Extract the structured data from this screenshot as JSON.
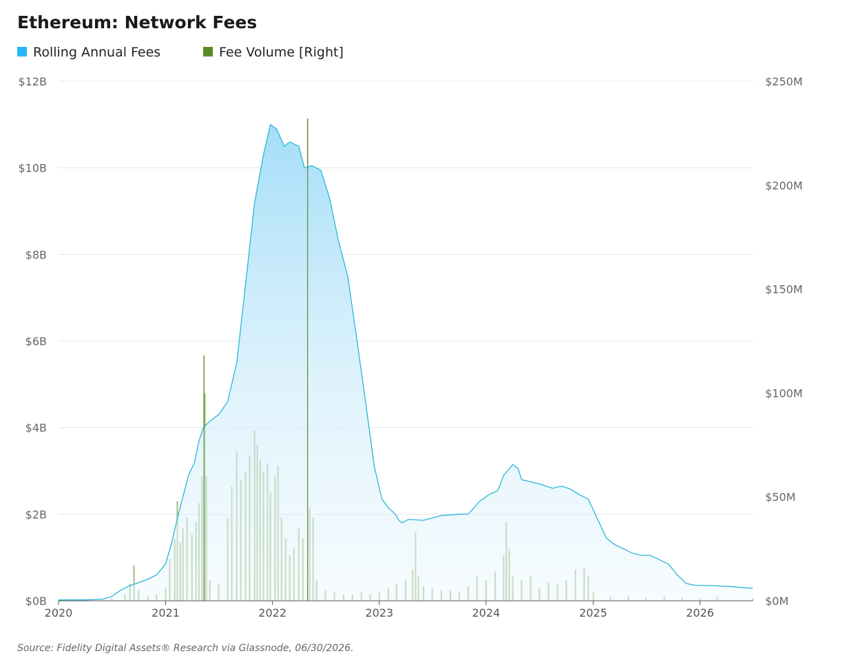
{
  "chart_data": {
    "type": "area",
    "title": "Ethereum: Network Fees",
    "legend": {
      "placement": "top-left",
      "entries": [
        {
          "name": "Rolling Annual Fees",
          "color": "#29b6f6"
        },
        {
          "name": "Fee Volume [Right]",
          "color": "#5b8c23"
        }
      ]
    },
    "x_axis": {
      "type": "date",
      "range": [
        "2020-01-01",
        "2026-06-30"
      ],
      "ticks": [
        "2020",
        "2021",
        "2022",
        "2023",
        "2024",
        "2025",
        "2026"
      ]
    },
    "y_axis_left": {
      "range": [
        0,
        12
      ],
      "unit": "billion USD",
      "ticks": [
        0,
        2,
        4,
        6,
        8,
        10,
        12
      ],
      "tick_labels": [
        "$0B",
        "$2B",
        "$4B",
        "$6B",
        "$8B",
        "$10B",
        "$12B"
      ]
    },
    "y_axis_right": {
      "range": [
        0,
        250
      ],
      "unit": "million USD",
      "ticks": [
        0,
        50,
        100,
        150,
        200,
        250
      ],
      "tick_labels": [
        "$0M",
        "$50M",
        "$100M",
        "$150M",
        "$200M",
        "$250M"
      ]
    },
    "grid": "horizontal",
    "series": [
      {
        "name": "Rolling Annual Fees",
        "axis": "left",
        "style": "area",
        "color": "#29b6f6",
        "points": [
          [
            "2020-01-01",
            0.02
          ],
          [
            "2020-04-01",
            0.02
          ],
          [
            "2020-06-01",
            0.04
          ],
          [
            "2020-07-01",
            0.1
          ],
          [
            "2020-08-01",
            0.25
          ],
          [
            "2020-09-01",
            0.35
          ],
          [
            "2020-10-01",
            0.42
          ],
          [
            "2020-11-01",
            0.5
          ],
          [
            "2020-12-01",
            0.6
          ],
          [
            "2021-01-01",
            0.85
          ],
          [
            "2021-01-20",
            1.3
          ],
          [
            "2021-02-10",
            1.9
          ],
          [
            "2021-03-01",
            2.4
          ],
          [
            "2021-03-20",
            2.9
          ],
          [
            "2021-04-10",
            3.2
          ],
          [
            "2021-04-25",
            3.7
          ],
          [
            "2021-05-10",
            4.0
          ],
          [
            "2021-06-01",
            4.15
          ],
          [
            "2021-07-01",
            4.3
          ],
          [
            "2021-08-01",
            4.6
          ],
          [
            "2021-09-01",
            5.5
          ],
          [
            "2021-10-01",
            7.3
          ],
          [
            "2021-11-01",
            9.2
          ],
          [
            "2021-12-01",
            10.3
          ],
          [
            "2021-12-25",
            11.0
          ],
          [
            "2022-01-15",
            10.9
          ],
          [
            "2022-02-10",
            10.5
          ],
          [
            "2022-03-01",
            10.6
          ],
          [
            "2022-04-01",
            10.5
          ],
          [
            "2022-04-20",
            10.0
          ],
          [
            "2022-05-15",
            10.05
          ],
          [
            "2022-06-15",
            9.95
          ],
          [
            "2022-07-15",
            9.3
          ],
          [
            "2022-08-15",
            8.3
          ],
          [
            "2022-09-15",
            7.5
          ],
          [
            "2022-10-15",
            6.1
          ],
          [
            "2022-11-15",
            4.6
          ],
          [
            "2022-12-15",
            3.1
          ],
          [
            "2023-01-10",
            2.35
          ],
          [
            "2023-02-01",
            2.15
          ],
          [
            "2023-02-25",
            2.0
          ],
          [
            "2023-03-10",
            1.85
          ],
          [
            "2023-03-20",
            1.8
          ],
          [
            "2023-04-10",
            1.88
          ],
          [
            "2023-06-01",
            1.86
          ],
          [
            "2023-08-01",
            1.97
          ],
          [
            "2023-10-01",
            2.0
          ],
          [
            "2023-11-01",
            2.0
          ],
          [
            "2023-12-10",
            2.3
          ],
          [
            "2024-01-10",
            2.45
          ],
          [
            "2024-02-10",
            2.55
          ],
          [
            "2024-03-01",
            2.9
          ],
          [
            "2024-04-01",
            3.15
          ],
          [
            "2024-04-20",
            3.05
          ],
          [
            "2024-05-01",
            2.8
          ],
          [
            "2024-06-01",
            2.75
          ],
          [
            "2024-07-01",
            2.7
          ],
          [
            "2024-08-15",
            2.6
          ],
          [
            "2024-09-15",
            2.65
          ],
          [
            "2024-10-15",
            2.58
          ],
          [
            "2024-11-15",
            2.45
          ],
          [
            "2024-12-15",
            2.35
          ],
          [
            "2025-01-15",
            1.9
          ],
          [
            "2025-02-15",
            1.45
          ],
          [
            "2025-03-15",
            1.3
          ],
          [
            "2025-04-15",
            1.2
          ],
          [
            "2025-05-15",
            1.1
          ],
          [
            "2025-06-15",
            1.05
          ],
          [
            "2025-07-15",
            1.05
          ],
          [
            "2025-08-15",
            0.95
          ],
          [
            "2025-09-15",
            0.85
          ],
          [
            "2025-10-15",
            0.6
          ],
          [
            "2025-11-15",
            0.4
          ],
          [
            "2025-12-15",
            0.36
          ],
          [
            "2026-02-15",
            0.35
          ],
          [
            "2026-04-15",
            0.33
          ],
          [
            "2026-06-30",
            0.29
          ]
        ]
      },
      {
        "name": "Fee Volume [Right]",
        "axis": "right",
        "style": "bar",
        "color": "#5b8c23",
        "points": [
          [
            "2020-01-01",
            0.3
          ],
          [
            "2020-04-01",
            0.5
          ],
          [
            "2020-07-01",
            1.5
          ],
          [
            "2020-08-15",
            3
          ],
          [
            "2020-09-01",
            8
          ],
          [
            "2020-09-15",
            17
          ],
          [
            "2020-10-01",
            5
          ],
          [
            "2020-11-01",
            2
          ],
          [
            "2020-12-01",
            3
          ],
          [
            "2021-01-01",
            6
          ],
          [
            "2021-01-15",
            20
          ],
          [
            "2021-02-01",
            30
          ],
          [
            "2021-02-10",
            48
          ],
          [
            "2021-02-20",
            28
          ],
          [
            "2021-03-01",
            35
          ],
          [
            "2021-03-15",
            40
          ],
          [
            "2021-04-01",
            32
          ],
          [
            "2021-04-15",
            38
          ],
          [
            "2021-04-25",
            47
          ],
          [
            "2021-05-05",
            60
          ],
          [
            "2021-05-12",
            118
          ],
          [
            "2021-05-15",
            100
          ],
          [
            "2021-05-20",
            60
          ],
          [
            "2021-06-01",
            10
          ],
          [
            "2021-07-01",
            8
          ],
          [
            "2021-08-01",
            40
          ],
          [
            "2021-08-15",
            55
          ],
          [
            "2021-09-01",
            72
          ],
          [
            "2021-09-15",
            58
          ],
          [
            "2021-10-01",
            62
          ],
          [
            "2021-10-15",
            70
          ],
          [
            "2021-11-01",
            82
          ],
          [
            "2021-11-10",
            75
          ],
          [
            "2021-11-20",
            68
          ],
          [
            "2021-12-01",
            62
          ],
          [
            "2021-12-15",
            66
          ],
          [
            "2021-12-25",
            52
          ],
          [
            "2022-01-10",
            60
          ],
          [
            "2022-01-20",
            65
          ],
          [
            "2022-02-01",
            40
          ],
          [
            "2022-02-15",
            30
          ],
          [
            "2022-03-01",
            22
          ],
          [
            "2022-03-15",
            25
          ],
          [
            "2022-04-01",
            35
          ],
          [
            "2022-04-15",
            30
          ],
          [
            "2022-05-01",
            232
          ],
          [
            "2022-05-08",
            45
          ],
          [
            "2022-05-20",
            40
          ],
          [
            "2022-06-01",
            10
          ],
          [
            "2022-07-01",
            5
          ],
          [
            "2022-08-01",
            4
          ],
          [
            "2022-09-01",
            3
          ],
          [
            "2022-10-01",
            3
          ],
          [
            "2022-11-01",
            4
          ],
          [
            "2022-12-01",
            3
          ],
          [
            "2023-01-01",
            4
          ],
          [
            "2023-02-01",
            6
          ],
          [
            "2023-03-01",
            8
          ],
          [
            "2023-04-01",
            10
          ],
          [
            "2023-04-25",
            15
          ],
          [
            "2023-05-05",
            33
          ],
          [
            "2023-05-15",
            12
          ],
          [
            "2023-06-01",
            7
          ],
          [
            "2023-07-01",
            6
          ],
          [
            "2023-08-01",
            5
          ],
          [
            "2023-09-01",
            5
          ],
          [
            "2023-10-01",
            4
          ],
          [
            "2023-11-01",
            7
          ],
          [
            "2023-12-01",
            12
          ],
          [
            "2024-01-01",
            10
          ],
          [
            "2024-02-01",
            14
          ],
          [
            "2024-03-01",
            22
          ],
          [
            "2024-03-10",
            38
          ],
          [
            "2024-03-20",
            25
          ],
          [
            "2024-04-01",
            12
          ],
          [
            "2024-05-01",
            10
          ],
          [
            "2024-06-01",
            12
          ],
          [
            "2024-07-01",
            6
          ],
          [
            "2024-08-01",
            9
          ],
          [
            "2024-09-01",
            8
          ],
          [
            "2024-10-01",
            10
          ],
          [
            "2024-11-01",
            15
          ],
          [
            "2024-12-01",
            16
          ],
          [
            "2024-12-15",
            12
          ],
          [
            "2025-01-01",
            4
          ],
          [
            "2025-03-01",
            2
          ],
          [
            "2025-05-01",
            2
          ],
          [
            "2025-07-01",
            1.5
          ],
          [
            "2025-09-01",
            2
          ],
          [
            "2025-11-01",
            1.5
          ],
          [
            "2026-01-01",
            1.2
          ],
          [
            "2026-03-01",
            2
          ],
          [
            "2026-06-30",
            1
          ]
        ]
      }
    ]
  },
  "source": "Source: Fidelity Digital Assets® Research via Glassnode, 06/30/2026."
}
